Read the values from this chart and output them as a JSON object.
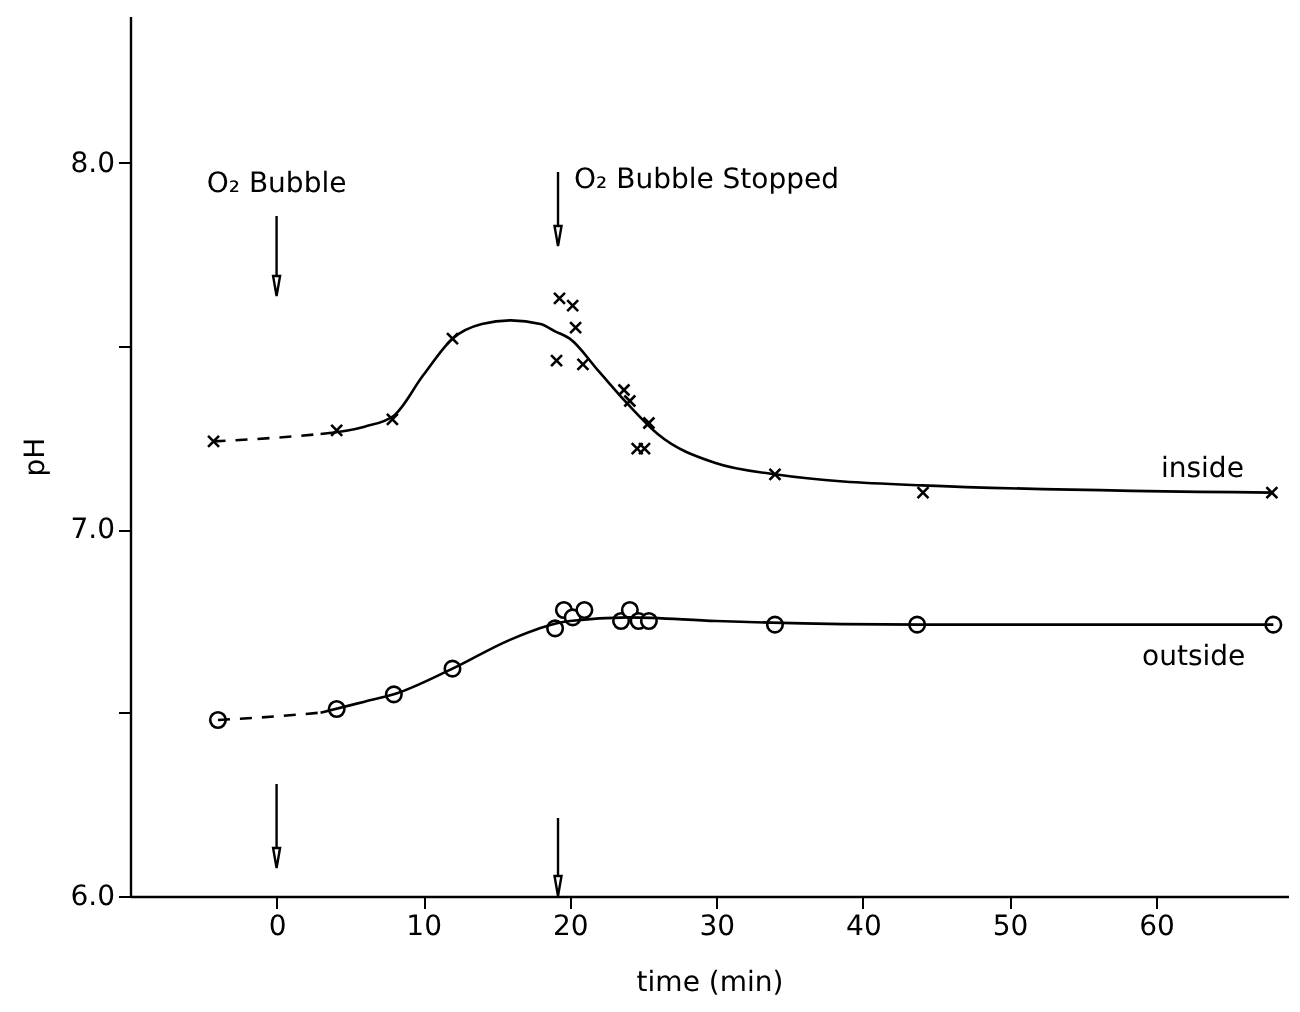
{
  "chart_data": {
    "type": "scatter",
    "xlabel": "time (min)",
    "ylabel": "pH",
    "xlim": [
      -10,
      69
    ],
    "xticks": [
      0,
      10,
      20,
      30,
      40,
      50,
      60
    ],
    "ylim": [
      6.0,
      8.4
    ],
    "yticks": [
      {
        "value": 6.0,
        "label": "6.0"
      },
      {
        "value": 6.5,
        "label": null
      },
      {
        "value": 7.0,
        "label": "7.0"
      },
      {
        "value": 7.5,
        "label": null
      },
      {
        "value": 8.0,
        "label": "8.0"
      }
    ],
    "grid": false,
    "series": [
      {
        "name": "inside",
        "marker": "cross",
        "color": "#000000",
        "x": [
          -4.3,
          4.1,
          7.9,
          12.0,
          19.3,
          20.2,
          20.4,
          19.1,
          20.9,
          23.7,
          24.1,
          25.4,
          24.6,
          25.1,
          34.0,
          44.1,
          67.9
        ],
        "values": [
          7.24,
          7.27,
          7.3,
          7.52,
          7.63,
          7.61,
          7.55,
          7.46,
          7.45,
          7.38,
          7.35,
          7.29,
          7.22,
          7.22,
          7.15,
          7.1,
          7.1
        ]
      },
      {
        "name": "outside",
        "marker": "circle",
        "color": "#000000",
        "x": [
          -4.0,
          4.1,
          8.0,
          12.0,
          19.0,
          19.6,
          20.2,
          21.0,
          23.5,
          24.1,
          24.7,
          25.4,
          34.0,
          43.7,
          68.0
        ],
        "values": [
          6.48,
          6.51,
          6.55,
          6.62,
          6.73,
          6.78,
          6.76,
          6.78,
          6.75,
          6.78,
          6.75,
          6.75,
          6.74,
          6.74,
          6.74
        ]
      },
      {
        "type": "line",
        "line_style": "dashed",
        "color": "#000000",
        "x": [
          -4.3,
          0,
          3
        ],
        "values": [
          7.24,
          7.25,
          7.26
        ]
      },
      {
        "type": "line",
        "line_style": "solid",
        "color": "#000000",
        "x": [
          3,
          6,
          8,
          10,
          12,
          14,
          16,
          18,
          19,
          20,
          22,
          24,
          26,
          30,
          34,
          44,
          68
        ],
        "values": [
          7.26,
          7.28,
          7.31,
          7.42,
          7.52,
          7.56,
          7.57,
          7.56,
          7.54,
          7.52,
          7.43,
          7.34,
          7.26,
          7.18,
          7.15,
          7.12,
          7.1
        ]
      },
      {
        "type": "line",
        "line_style": "dashed",
        "color": "#000000",
        "x": [
          -4.0,
          0,
          3
        ],
        "values": [
          6.48,
          6.49,
          6.5
        ]
      },
      {
        "type": "line",
        "line_style": "solid",
        "color": "#000000",
        "x": [
          3,
          6,
          8,
          12,
          16,
          20,
          24,
          30,
          44,
          68
        ],
        "values": [
          6.5,
          6.53,
          6.55,
          6.62,
          6.7,
          6.75,
          6.76,
          6.75,
          6.74,
          6.74
        ]
      }
    ],
    "ref_lines": [
      {
        "axis": "x",
        "value": 0,
        "label": "O₂ Bubble"
      },
      {
        "axis": "x",
        "value": 19.2,
        "label": "O₂ Bubble Stopped"
      }
    ]
  }
}
